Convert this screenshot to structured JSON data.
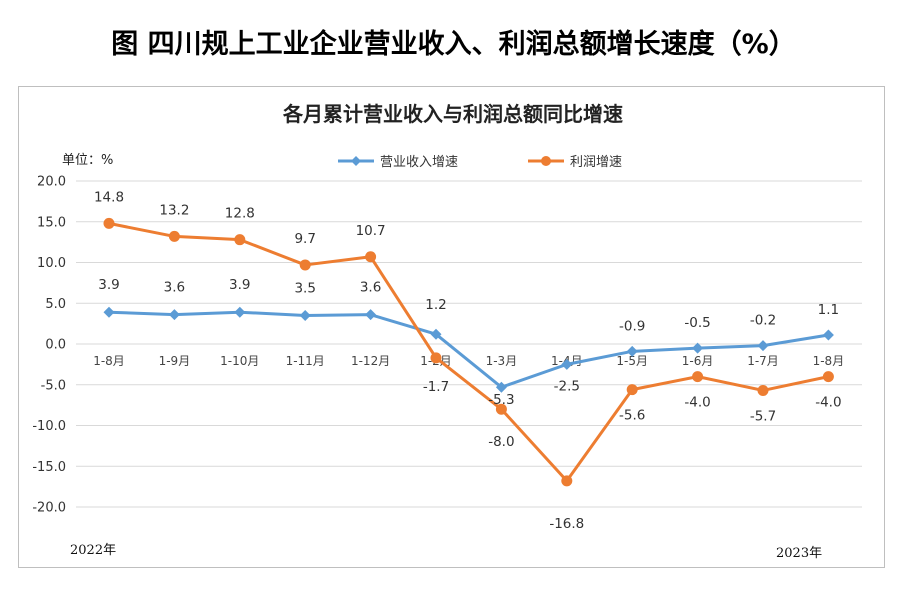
{
  "page_title": "图  四川规上工业企业营业收入、利润总额增长速度（%）",
  "chart_data": {
    "type": "line",
    "title": "各月累计营业收入与利润总额同比增速",
    "unit_label": "单位：%",
    "categories": [
      "1-8月",
      "1-9月",
      "1-10月",
      "1-11月",
      "1-12月",
      "1-2月",
      "1-3月",
      "1-4月",
      "1-5月",
      "1-6月",
      "1-7月",
      "1-8月"
    ],
    "year_labels": {
      "start": "2022年",
      "end": "2023年"
    },
    "ylim": [
      -20,
      20
    ],
    "yticks": [
      "20.0",
      "15.0",
      "10.0",
      "5.0",
      "0.0",
      "-5.0",
      "-10.0",
      "-15.0",
      "-20.0"
    ],
    "grid": "horizontal",
    "legend_position": "top",
    "series": [
      {
        "name": "营业收入增速",
        "color": "#5b9bd5",
        "marker": "diamond",
        "values": [
          3.9,
          3.6,
          3.9,
          3.5,
          3.6,
          1.2,
          -5.3,
          -2.5,
          -0.9,
          -0.5,
          -0.2,
          1.1
        ],
        "labels": [
          "3.9",
          "3.6",
          "3.9",
          "3.5",
          "3.6",
          "1.2",
          "-5.3",
          "-2.5",
          "-0.9",
          "-0.5",
          "-0.2",
          "1.1"
        ]
      },
      {
        "name": "利润增速",
        "color": "#ed7d31",
        "marker": "circle",
        "values": [
          14.8,
          13.2,
          12.8,
          9.7,
          10.7,
          -1.7,
          -8.0,
          -16.8,
          -5.6,
          -4.0,
          -5.7,
          -4.0
        ],
        "labels": [
          "14.8",
          "13.2",
          "12.8",
          "9.7",
          "10.7",
          "-1.7",
          "-8.0",
          "-16.8",
          "-5.6",
          "-4.0",
          "-5.7",
          "-4.0"
        ]
      }
    ]
  }
}
